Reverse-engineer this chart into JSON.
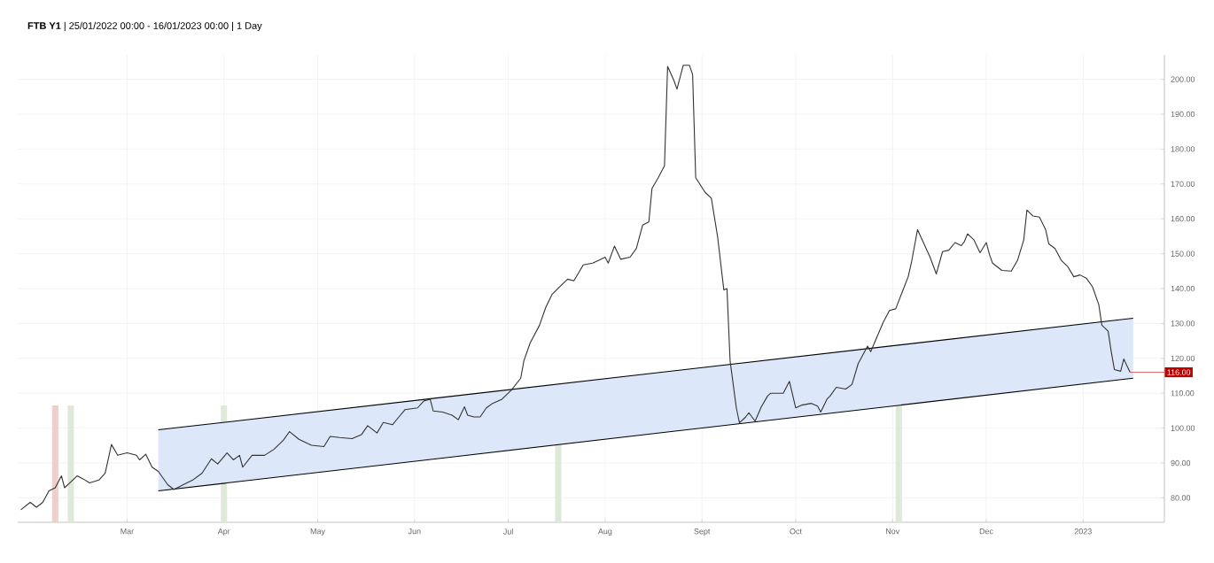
{
  "chart_data": {
    "type": "line",
    "title": "**FTB Y1** | 25/01/2022 00:00 - 16/01/2023 00:00 | 1 Day",
    "xlim": [
      "2022-01-25",
      "2023-01-27"
    ],
    "ylim": [
      73,
      207
    ],
    "xticks": [
      {
        "value": "2022-03-01",
        "label": "Mar"
      },
      {
        "value": "2022-04-01",
        "label": "Apr"
      },
      {
        "value": "2022-05-01",
        "label": "May"
      },
      {
        "value": "2022-06-01",
        "label": "Jun"
      },
      {
        "value": "2022-07-01",
        "label": "Jul"
      },
      {
        "value": "2022-08-01",
        "label": "Aug"
      },
      {
        "value": "2022-09-01",
        "label": "Sept"
      },
      {
        "value": "2022-10-01",
        "label": "Oct"
      },
      {
        "value": "2022-11-01",
        "label": "Nov"
      },
      {
        "value": "2022-12-01",
        "label": "Dec"
      },
      {
        "value": "2023-01-01",
        "label": "2023"
      }
    ],
    "yticks": [
      {
        "value": 80,
        "label": "80.00"
      },
      {
        "value": 90,
        "label": "90.00"
      },
      {
        "value": 100,
        "label": "100.00"
      },
      {
        "value": 110,
        "label": "110.00"
      },
      {
        "value": 120,
        "label": "120.00"
      },
      {
        "value": 130,
        "label": "130.00"
      },
      {
        "value": 140,
        "label": "140.00"
      },
      {
        "value": 150,
        "label": "150.00"
      },
      {
        "value": 160,
        "label": "160.00"
      },
      {
        "value": 170,
        "label": "170.00"
      },
      {
        "value": 180,
        "label": "180.00"
      },
      {
        "value": 190,
        "label": "190.00"
      },
      {
        "value": 200,
        "label": "200.00"
      }
    ],
    "grid": true,
    "series": [
      {
        "color": "#000000",
        "x": [
          "2022-03-11",
          "2023-01-17"
        ],
        "values": [
          82.0,
          114.3
        ],
        "lower": [
          82.0,
          114.3
        ],
        "upper": [
          99.5,
          131.5
        ]
      },
      {
        "color": "#000000",
        "x": [
          "2022-03-11",
          "2023-01-17"
        ],
        "values": [
          99.5,
          131.5
        ]
      },
      {
        "color": "#333333",
        "x": [
          "2022-01-26",
          "2022-01-29",
          "2022-01-31",
          "2022-02-02",
          "2022-02-04",
          "2022-02-06",
          "2022-02-08",
          "2022-02-09",
          "2022-02-11",
          "2022-02-13",
          "2022-02-15",
          "2022-02-17",
          "2022-02-20",
          "2022-02-22",
          "2022-02-24",
          "2022-02-26",
          "2022-03-01",
          "2022-03-04",
          "2022-03-05",
          "2022-03-07",
          "2022-03-09",
          "2022-03-11",
          "2022-03-14",
          "2022-03-16",
          "2022-03-19",
          "2022-03-22",
          "2022-03-25",
          "2022-03-28",
          "2022-03-30",
          "2022-04-02",
          "2022-04-04",
          "2022-04-06",
          "2022-04-07",
          "2022-04-10",
          "2022-04-14",
          "2022-04-17",
          "2022-04-20",
          "2022-04-22",
          "2022-04-25",
          "2022-04-29",
          "2022-05-03",
          "2022-05-05",
          "2022-05-08",
          "2022-05-12",
          "2022-05-15",
          "2022-05-17",
          "2022-05-20",
          "2022-05-22",
          "2022-05-25",
          "2022-05-27",
          "2022-05-29",
          "2022-06-02",
          "2022-06-04",
          "2022-06-06",
          "2022-06-07",
          "2022-06-10",
          "2022-06-13",
          "2022-06-15",
          "2022-06-17",
          "2022-06-18",
          "2022-06-20",
          "2022-06-22",
          "2022-06-24",
          "2022-06-26",
          "2022-06-29",
          "2022-07-02",
          "2022-07-05",
          "2022-07-06",
          "2022-07-08",
          "2022-07-11",
          "2022-07-13",
          "2022-07-15",
          "2022-07-18",
          "2022-07-20",
          "2022-07-22",
          "2022-07-25",
          "2022-07-28",
          "2022-07-30",
          "2022-08-01",
          "2022-08-02",
          "2022-08-04",
          "2022-08-06",
          "2022-08-09",
          "2022-08-11",
          "2022-08-13",
          "2022-08-15",
          "2022-08-16",
          "2022-08-18",
          "2022-08-20",
          "2022-08-21",
          "2022-08-23",
          "2022-08-24",
          "2022-08-26",
          "2022-08-28",
          "2022-08-29",
          "2022-08-30",
          "2022-09-02",
          "2022-09-04",
          "2022-09-06",
          "2022-09-08",
          "2022-09-09",
          "2022-09-10",
          "2022-09-12",
          "2022-09-13",
          "2022-09-15",
          "2022-09-16",
          "2022-09-18",
          "2022-09-20",
          "2022-09-22",
          "2022-09-23",
          "2022-09-27",
          "2022-09-29",
          "2022-10-01",
          "2022-10-03",
          "2022-10-06",
          "2022-10-08",
          "2022-10-09",
          "2022-10-11",
          "2022-10-12",
          "2022-10-14",
          "2022-10-17",
          "2022-10-19",
          "2022-10-21",
          "2022-10-24",
          "2022-10-25",
          "2022-10-27",
          "2022-10-29",
          "2022-10-31",
          "2022-11-02",
          "2022-11-04",
          "2022-11-06",
          "2022-11-07",
          "2022-11-09",
          "2022-11-10",
          "2022-11-13",
          "2022-11-15",
          "2022-11-17",
          "2022-11-19",
          "2022-11-21",
          "2022-11-23",
          "2022-11-24",
          "2022-11-25",
          "2022-11-27",
          "2022-11-29",
          "2022-12-01",
          "2022-12-02",
          "2022-12-03",
          "2022-12-06",
          "2022-12-09",
          "2022-12-11",
          "2022-12-13",
          "2022-12-14",
          "2022-12-16",
          "2022-12-18",
          "2022-12-20",
          "2022-12-21",
          "2022-12-23",
          "2022-12-25",
          "2022-12-27",
          "2022-12-29",
          "2022-12-31",
          "2023-01-02",
          "2023-01-04",
          "2023-01-06",
          "2023-01-07",
          "2023-01-09",
          "2023-01-10",
          "2023-01-11",
          "2023-01-13",
          "2023-01-14",
          "2023-01-16"
        ],
        "values": [
          76.6,
          78.7,
          77.3,
          78.7,
          82.0,
          82.9,
          86.3,
          82.9,
          84.6,
          86.3,
          85.4,
          84.3,
          85.1,
          87.1,
          95.3,
          92.2,
          92.9,
          92.2,
          90.9,
          92.5,
          88.8,
          87.6,
          83.8,
          82.4,
          83.8,
          85.1,
          87.1,
          91.2,
          89.7,
          92.9,
          90.9,
          92.2,
          88.8,
          92.2,
          92.2,
          93.9,
          96.5,
          99.0,
          96.8,
          95.1,
          94.7,
          97.6,
          97.3,
          97.0,
          98.1,
          100.7,
          98.6,
          101.6,
          101.0,
          103.2,
          105.3,
          105.8,
          107.8,
          108.3,
          104.9,
          104.6,
          103.7,
          102.4,
          106.1,
          103.7,
          103.2,
          103.2,
          105.8,
          107.1,
          108.3,
          110.9,
          114.3,
          119.3,
          124.4,
          129.5,
          134.6,
          138.3,
          141.0,
          142.7,
          142.2,
          146.8,
          147.3,
          148.1,
          149.0,
          147.3,
          152.2,
          148.4,
          149.0,
          151.5,
          158.2,
          159.1,
          168.7,
          171.8,
          175.2,
          203.7,
          199.7,
          197.2,
          204.0,
          204.0,
          201.4,
          171.8,
          167.6,
          165.9,
          154.9,
          139.6,
          140.0,
          119.3,
          105.8,
          101.5,
          103.2,
          104.4,
          102.0,
          106.1,
          109.2,
          110.0,
          110.0,
          113.4,
          105.8,
          106.6,
          107.1,
          106.3,
          104.6,
          108.3,
          109.2,
          111.7,
          111.2,
          112.5,
          118.5,
          123.5,
          121.9,
          126.1,
          130.3,
          133.7,
          134.2,
          138.8,
          143.4,
          147.3,
          156.9,
          154.9,
          149.0,
          144.2,
          150.6,
          151.0,
          153.2,
          152.3,
          153.5,
          155.7,
          154.0,
          150.3,
          153.2,
          149.8,
          147.3,
          145.2,
          145.0,
          148.1,
          154.0,
          162.5,
          160.8,
          160.5,
          156.9,
          152.8,
          151.5,
          148.1,
          146.4,
          143.4,
          143.9,
          143.0,
          140.5,
          135.4,
          129.5,
          127.8,
          121.9,
          116.8,
          116.3,
          119.8,
          116.0
        ]
      }
    ],
    "bands": [
      {
        "axis": "x",
        "from": "2022-02-05",
        "to": "2022-02-07",
        "color": "#f0cfc8"
      },
      {
        "axis": "x",
        "from": "2022-02-10",
        "to": "2022-02-12",
        "color": "#dfe9d8"
      },
      {
        "axis": "x",
        "from": "2022-03-31",
        "to": "2022-04-02",
        "color": "#dfe9d8"
      },
      {
        "axis": "x",
        "from": "2022-07-16",
        "to": "2022-07-18",
        "color": "#dfe9d8"
      },
      {
        "axis": "x",
        "from": "2022-11-02",
        "to": "2022-11-04",
        "color": "#dfe9d8"
      }
    ],
    "annotations": [
      "116.00"
    ]
  }
}
